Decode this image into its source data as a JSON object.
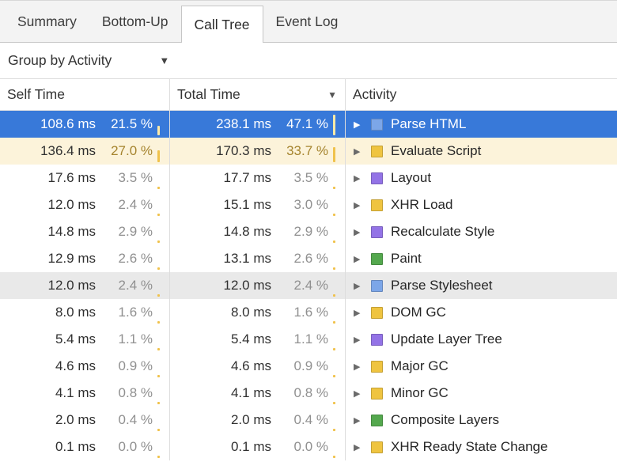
{
  "tabs": [
    {
      "label": "Summary",
      "selected": false
    },
    {
      "label": "Bottom-Up",
      "selected": false
    },
    {
      "label": "Call Tree",
      "selected": true
    },
    {
      "label": "Event Log",
      "selected": false
    }
  ],
  "toolbar": {
    "group_by_label": "Group by Activity",
    "dropdown_icon": "▼"
  },
  "table": {
    "columns": {
      "self_time": "Self Time",
      "total_time": "Total Time",
      "activity": "Activity"
    },
    "icons": {
      "sort": "▼",
      "disclosure": "▶"
    },
    "rows": [
      {
        "self_ms": "108.6 ms",
        "self_pct": "21.5 %",
        "self_pct_val": 21.5,
        "total_ms": "238.1 ms",
        "total_pct": "47.1 %",
        "total_pct_val": 47.1,
        "activity": "Parse HTML",
        "category": "loading",
        "state": "selected"
      },
      {
        "self_ms": "136.4 ms",
        "self_pct": "27.0 %",
        "self_pct_val": 27.0,
        "total_ms": "170.3 ms",
        "total_pct": "33.7 %",
        "total_pct_val": 33.7,
        "activity": "Evaluate Script",
        "category": "scripting",
        "state": "accent"
      },
      {
        "self_ms": "17.6 ms",
        "self_pct": "3.5 %",
        "self_pct_val": 3.5,
        "total_ms": "17.7 ms",
        "total_pct": "3.5 %",
        "total_pct_val": 3.5,
        "activity": "Layout",
        "category": "rendering",
        "state": ""
      },
      {
        "self_ms": "12.0 ms",
        "self_pct": "2.4 %",
        "self_pct_val": 2.4,
        "total_ms": "15.1 ms",
        "total_pct": "3.0 %",
        "total_pct_val": 3.0,
        "activity": "XHR Load",
        "category": "scripting",
        "state": ""
      },
      {
        "self_ms": "14.8 ms",
        "self_pct": "2.9 %",
        "self_pct_val": 2.9,
        "total_ms": "14.8 ms",
        "total_pct": "2.9 %",
        "total_pct_val": 2.9,
        "activity": "Recalculate Style",
        "category": "rendering",
        "state": ""
      },
      {
        "self_ms": "12.9 ms",
        "self_pct": "2.6 %",
        "self_pct_val": 2.6,
        "total_ms": "13.1 ms",
        "total_pct": "2.6 %",
        "total_pct_val": 2.6,
        "activity": "Paint",
        "category": "painting",
        "state": ""
      },
      {
        "self_ms": "12.0 ms",
        "self_pct": "2.4 %",
        "self_pct_val": 2.4,
        "total_ms": "12.0 ms",
        "total_pct": "2.4 %",
        "total_pct_val": 2.4,
        "activity": "Parse Stylesheet",
        "category": "loading",
        "state": "hover"
      },
      {
        "self_ms": "8.0 ms",
        "self_pct": "1.6 %",
        "self_pct_val": 1.6,
        "total_ms": "8.0 ms",
        "total_pct": "1.6 %",
        "total_pct_val": 1.6,
        "activity": "DOM GC",
        "category": "scripting",
        "state": ""
      },
      {
        "self_ms": "5.4 ms",
        "self_pct": "1.1 %",
        "self_pct_val": 1.1,
        "total_ms": "5.4 ms",
        "total_pct": "1.1 %",
        "total_pct_val": 1.1,
        "activity": "Update Layer Tree",
        "category": "rendering",
        "state": ""
      },
      {
        "self_ms": "4.6 ms",
        "self_pct": "0.9 %",
        "self_pct_val": 0.9,
        "total_ms": "4.6 ms",
        "total_pct": "0.9 %",
        "total_pct_val": 0.9,
        "activity": "Major GC",
        "category": "scripting",
        "state": ""
      },
      {
        "self_ms": "4.1 ms",
        "self_pct": "0.8 %",
        "self_pct_val": 0.8,
        "total_ms": "4.1 ms",
        "total_pct": "0.8 %",
        "total_pct_val": 0.8,
        "activity": "Minor GC",
        "category": "scripting",
        "state": ""
      },
      {
        "self_ms": "2.0 ms",
        "self_pct": "0.4 %",
        "self_pct_val": 0.4,
        "total_ms": "2.0 ms",
        "total_pct": "0.4 %",
        "total_pct_val": 0.4,
        "activity": "Composite Layers",
        "category": "painting",
        "state": ""
      },
      {
        "self_ms": "0.1 ms",
        "self_pct": "0.0 %",
        "self_pct_val": 0.0,
        "total_ms": "0.1 ms",
        "total_pct": "0.0 %",
        "total_pct_val": 0.0,
        "activity": "XHR Ready State Change",
        "category": "scripting",
        "state": ""
      }
    ]
  },
  "colors": {
    "loading": "#7ca6e8",
    "scripting": "#efc440",
    "rendering": "#9373e6",
    "painting": "#54a84e",
    "selected_row": "#3879d9",
    "accent_row": "#fcf3da",
    "hover_row": "#e9e9e9",
    "bar_tick": "#f0c24b"
  }
}
